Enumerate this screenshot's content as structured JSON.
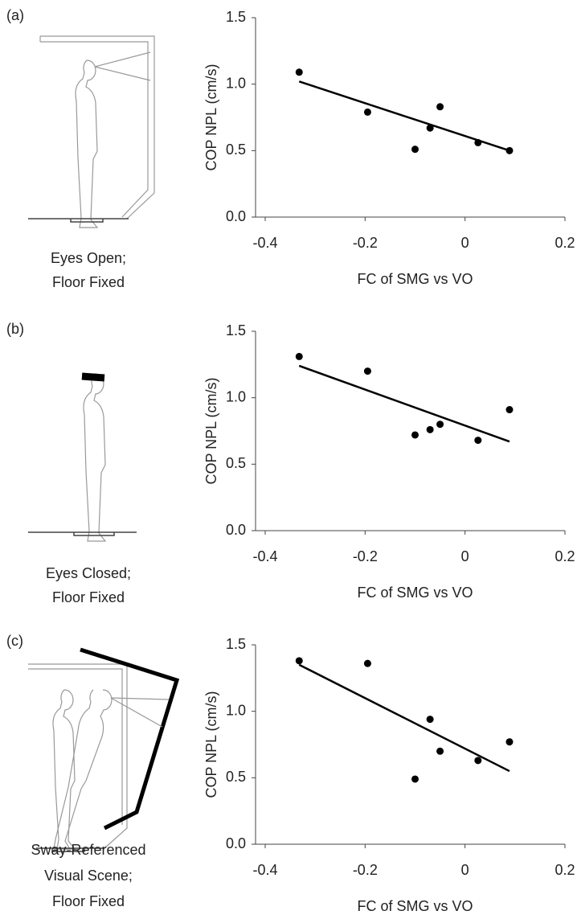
{
  "panels": [
    {
      "label": "(a)",
      "caption": [
        "Eyes Open;",
        "Floor Fixed"
      ]
    },
    {
      "label": "(b)",
      "caption": [
        "Eyes Closed;",
        "Floor Fixed"
      ]
    },
    {
      "label": "(c)",
      "caption": [
        "Sway-Referenced",
        "Visual Scene;",
        "Floor Fixed"
      ]
    }
  ],
  "chart_data": [
    {
      "type": "scatter",
      "x_label": "FC of SMG vs VO",
      "y_label": "COP NPL (cm/s)",
      "x": [
        -0.332,
        -0.195,
        -0.1,
        -0.07,
        -0.05,
        0.026,
        0.089
      ],
      "series": [
        {
          "color": "#000000",
          "values": [
            1.09,
            0.79,
            0.51,
            0.67,
            0.83,
            0.56,
            0.5
          ]
        }
      ],
      "trendline": {
        "x": [
          -0.332,
          0.089
        ],
        "values": [
          1.02,
          0.5
        ]
      },
      "xlim": [
        -0.4,
        0.2
      ],
      "xticks": [
        -0.4,
        -0.2,
        0,
        0.2
      ],
      "ylim": [
        0,
        1.5
      ],
      "yticks": [
        {
          "value": 0,
          "label": "0.0"
        },
        0.5,
        {
          "value": 1,
          "label": "1.0"
        },
        1.5
      ]
    },
    {
      "type": "scatter",
      "x_label": "FC of SMG vs VO",
      "y_label": "COP NPL (cm/s)",
      "x": [
        -0.332,
        -0.195,
        -0.1,
        -0.07,
        -0.05,
        0.026,
        0.089
      ],
      "series": [
        {
          "color": "#000000",
          "values": [
            1.31,
            1.2,
            0.72,
            0.76,
            0.8,
            0.68,
            0.91
          ]
        }
      ],
      "trendline": {
        "x": [
          -0.332,
          0.089
        ],
        "values": [
          1.24,
          0.67
        ]
      },
      "xlim": [
        -0.4,
        0.2
      ],
      "xticks": [
        -0.4,
        -0.2,
        0,
        0.2
      ],
      "ylim": [
        0,
        1.5
      ],
      "yticks": [
        {
          "value": 0,
          "label": "0.0"
        },
        0.5,
        {
          "value": 1,
          "label": "1.0"
        },
        1.5
      ]
    },
    {
      "type": "scatter",
      "x_label": "FC of SMG vs VO",
      "y_label": "COP NPL (cm/s)",
      "x": [
        -0.332,
        -0.195,
        -0.1,
        -0.07,
        -0.05,
        0.026,
        0.089
      ],
      "series": [
        {
          "color": "#000000",
          "values": [
            1.38,
            1.36,
            0.49,
            0.94,
            0.7,
            0.63,
            0.77
          ]
        }
      ],
      "trendline": {
        "x": [
          -0.332,
          0.089
        ],
        "values": [
          1.35,
          0.55
        ]
      },
      "xlim": [
        -0.4,
        0.2
      ],
      "xticks": [
        -0.4,
        -0.2,
        0,
        0.2
      ],
      "ylim": [
        0,
        1.5
      ],
      "yticks": [
        {
          "value": 0,
          "label": "0.0"
        },
        0.5,
        {
          "value": 1,
          "label": "1.0"
        },
        1.5
      ]
    }
  ]
}
